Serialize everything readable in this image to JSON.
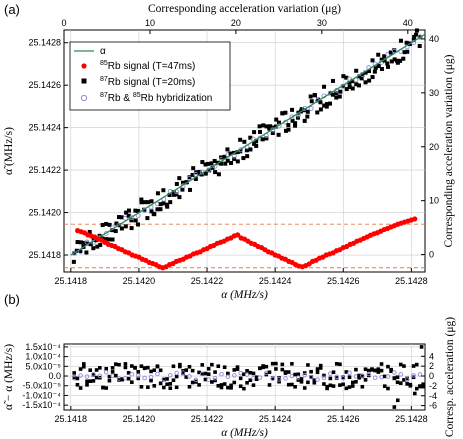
{
  "panels": {
    "a": "(a)",
    "b": "(b)"
  },
  "colors": {
    "line": "#2e8b57",
    "rb85": "#ff0000",
    "rb87": "#000000",
    "hybrid": "#8c8cdc",
    "ref": "#e07a4a",
    "grid": "#cccccc"
  },
  "chart_data": [
    {
      "type": "scatter",
      "panel": "(a)",
      "xlabel": "α (MHz/s)",
      "ylabel": "α̃ (MHz/s)",
      "top_xlabel": "Corresponding acceleration variation (μg)",
      "right_ylabel": "Corresponding acceleration variation (μg)",
      "xlim": [
        25.14178,
        25.14284
      ],
      "ylim": [
        25.14172,
        25.14286
      ],
      "x_ticks": [
        25.1418,
        25.142,
        25.1422,
        25.1424,
        25.1426,
        25.1428
      ],
      "x_tick_labels": [
        "25.1418",
        "25.1420",
        "25.1422",
        "25.1424",
        "25.1426",
        "25.1428"
      ],
      "y_ticks": [
        25.1418,
        25.142,
        25.1422,
        25.1424,
        25.1426,
        25.1428
      ],
      "y_tick_labels": [
        "25.1418",
        "25.1420",
        "25.1422",
        "25.1424",
        "25.1426",
        "25.1428"
      ],
      "top_ticks": [
        0,
        10,
        20,
        30,
        40
      ],
      "top_tick_labels": [
        "0",
        "10",
        "20",
        "30",
        "40"
      ],
      "right_ticks": [
        0,
        10,
        20,
        30,
        40
      ],
      "right_tick_labels": [
        "0",
        "10",
        "20",
        "30",
        "40"
      ],
      "legend_position": "top-left",
      "series": [
        {
          "name": "α",
          "kind": "line",
          "x": [
            25.1418,
            25.14284
          ],
          "y": [
            25.1418,
            25.14284
          ]
        },
        {
          "name": "85Rb signal (T=47ms)",
          "kind": "marker",
          "marker": "circle",
          "x": [
            25.14182,
            25.14183,
            25.14184,
            25.14185,
            25.14186,
            25.14187,
            25.14188,
            25.14189,
            25.1419,
            25.14191,
            25.14192,
            25.14193,
            25.14194,
            25.14195,
            25.14196,
            25.14197,
            25.14198,
            25.14199,
            25.142,
            25.14201,
            25.14202,
            25.14203,
            25.14204,
            25.14205,
            25.14206,
            25.14207,
            25.14208,
            25.14209,
            25.1421,
            25.14211,
            25.14212,
            25.14213,
            25.14214,
            25.14215,
            25.14216,
            25.14217,
            25.14218,
            25.14219,
            25.1422,
            25.14221,
            25.14222,
            25.14223,
            25.14224,
            25.14225,
            25.14226,
            25.14227,
            25.14228,
            25.14229,
            25.1423,
            25.14231,
            25.14232,
            25.14233,
            25.14234,
            25.14235,
            25.14236,
            25.14237,
            25.14238,
            25.14239,
            25.1424,
            25.14241,
            25.14242,
            25.14243,
            25.14244,
            25.14245,
            25.14246,
            25.14247,
            25.14248,
            25.14249,
            25.1425,
            25.14251,
            25.14252,
            25.14253,
            25.14254,
            25.14255,
            25.14256,
            25.14257,
            25.14258,
            25.14259,
            25.1426,
            25.14261,
            25.14262,
            25.14263,
            25.14264,
            25.14265,
            25.14266,
            25.14267,
            25.14268,
            25.14269,
            25.1427,
            25.14271,
            25.14272,
            25.14273,
            25.14274,
            25.14275,
            25.14276,
            25.14277,
            25.14278,
            25.14279,
            25.1428,
            25.14281
          ],
          "y": [
            25.141915,
            25.14191,
            25.141905,
            25.141895,
            25.14189,
            25.141885,
            25.141875,
            25.14187,
            25.14186,
            25.14185,
            25.141845,
            25.14184,
            25.14183,
            25.141825,
            25.141815,
            25.14181,
            25.1418,
            25.141795,
            25.14179,
            25.14178,
            25.141775,
            25.141765,
            25.14176,
            25.141755,
            25.141745,
            25.14174,
            25.141745,
            25.141755,
            25.14176,
            25.14177,
            25.141775,
            25.14178,
            25.14179,
            25.141795,
            25.141805,
            25.14181,
            25.141815,
            25.141825,
            25.14183,
            25.14184,
            25.141845,
            25.141855,
            25.14186,
            25.141865,
            25.141875,
            25.14188,
            25.14189,
            25.141895,
            25.14188,
            25.141875,
            25.141865,
            25.141855,
            25.14185,
            25.14184,
            25.141835,
            25.141825,
            25.141815,
            25.14181,
            25.1418,
            25.141795,
            25.141785,
            25.14178,
            25.14177,
            25.141765,
            25.141755,
            25.141748,
            25.141745,
            25.14175,
            25.141758,
            25.14177,
            25.141775,
            25.141785,
            25.14179,
            25.1418,
            25.141805,
            25.14181,
            25.14182,
            25.141825,
            25.141835,
            25.14184,
            25.14185,
            25.141855,
            25.141865,
            25.14187,
            25.141878,
            25.141885,
            25.141893,
            25.1419,
            25.141905,
            25.141912,
            25.14192,
            25.141925,
            25.141932,
            25.141938,
            25.141945,
            25.14195,
            25.141955,
            25.14196,
            25.141965,
            25.14197
          ]
        },
        {
          "name": "87Rb signal (T=20ms)",
          "kind": "marker",
          "marker": "square"
        },
        {
          "name": "87Rb & 85Rb hybridization",
          "kind": "marker",
          "marker": "circle-open"
        }
      ],
      "reference_lines_y": [
        25.14174,
        25.141945
      ]
    },
    {
      "type": "scatter",
      "panel": "(b)",
      "xlabel": "α (MHz/s)",
      "ylabel": "α̃ − α (MHz/s)",
      "right_ylabel": "Corresp. acceleration (μg)",
      "xlim": [
        25.14178,
        25.14284
      ],
      "ylim": [
        -0.000175,
        0.000165
      ],
      "x_ticks": [
        25.1418,
        25.142,
        25.1422,
        25.1424,
        25.1426,
        25.1428
      ],
      "x_tick_labels": [
        "25.1418",
        "25.1420",
        "25.1422",
        "25.1424",
        "25.1426",
        "25.1428"
      ],
      "y_ticks": [
        0.00015,
        0.0001,
        5e-05,
        0,
        -5e-05,
        -0.0001,
        -0.00015
      ],
      "y_tick_labels": [
        "1.5x10⁻⁴",
        "1.0x10⁻⁴",
        "5.0x10⁻⁵",
        "0.0",
        "-5.0x10⁻⁵",
        "-1.0x10⁻⁴",
        "-1.5x10⁻⁴"
      ],
      "right_ticks": [
        4,
        2,
        0,
        -2,
        -4,
        -6
      ],
      "right_tick_labels": [
        "4",
        "2",
        "0",
        "-2",
        "-4",
        "-6"
      ],
      "series": [
        {
          "name": "87Rb signal (T=20ms)",
          "kind": "marker",
          "marker": "square"
        },
        {
          "name": "87Rb & 85Rb hybridization",
          "kind": "marker",
          "marker": "circle-open"
        }
      ]
    }
  ],
  "legend": [
    {
      "label_pre": "",
      "label_sup1": "",
      "label_main": "α",
      "label_sup2": "",
      "label_tail": ""
    },
    {
      "label_pre": "",
      "label_sup1": "85",
      "label_main": "Rb signal (T=47ms)",
      "label_sup2": "",
      "label_tail": ""
    },
    {
      "label_pre": "",
      "label_sup1": "87",
      "label_main": "Rb signal (T=20ms)",
      "label_sup2": "",
      "label_tail": ""
    },
    {
      "label_pre": "",
      "label_sup1": "87",
      "label_main": "Rb & ",
      "label_sup2": "85",
      "label_tail": "Rb hybridization"
    }
  ]
}
